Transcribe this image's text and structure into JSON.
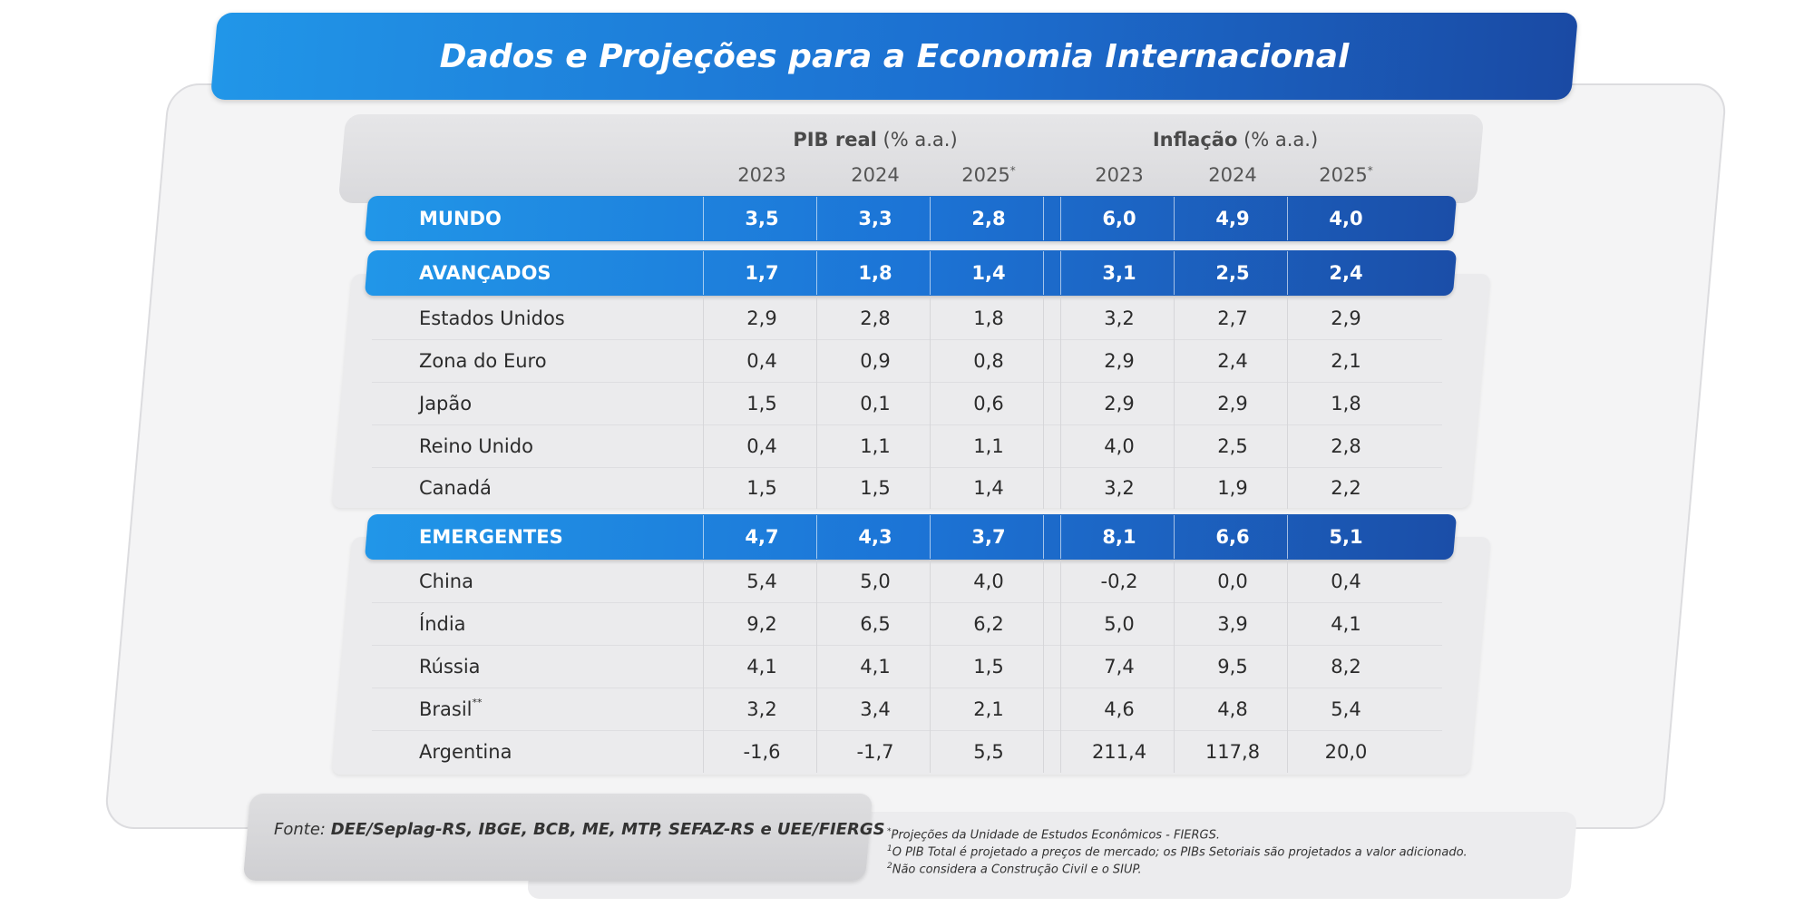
{
  "title": "Dados e Projeções para a Economia Internacional",
  "groups": {
    "pib": {
      "name": "PIB real",
      "unit": "(% a.a.)"
    },
    "inflacao": {
      "name": "Inflação",
      "unit": "(% a.a.)"
    }
  },
  "years": [
    "2023",
    "2024",
    "2025",
    "2023",
    "2024",
    "2025"
  ],
  "year_marks": [
    "",
    "",
    "*",
    "",
    "",
    "*"
  ],
  "rows": [
    {
      "label": "MUNDO",
      "type": "highlight",
      "values": [
        "3,5",
        "3,3",
        "2,8",
        "6,0",
        "4,9",
        "4,0"
      ]
    },
    {
      "label": "AVANÇADOS",
      "type": "highlight",
      "values": [
        "1,7",
        "1,8",
        "1,4",
        "3,1",
        "2,5",
        "2,4"
      ]
    },
    {
      "label": "Estados Unidos",
      "type": "normal",
      "values": [
        "2,9",
        "2,8",
        "1,8",
        "3,2",
        "2,7",
        "2,9"
      ]
    },
    {
      "label": "Zona do Euro",
      "type": "normal",
      "values": [
        "0,4",
        "0,9",
        "0,8",
        "2,9",
        "2,4",
        "2,1"
      ]
    },
    {
      "label": "Japão",
      "type": "normal",
      "values": [
        "1,5",
        "0,1",
        "0,6",
        "2,9",
        "2,9",
        "1,8"
      ]
    },
    {
      "label": "Reino Unido",
      "type": "normal",
      "values": [
        "0,4",
        "1,1",
        "1,1",
        "4,0",
        "2,5",
        "2,8"
      ]
    },
    {
      "label": "Canadá",
      "type": "normal",
      "values": [
        "1,5",
        "1,5",
        "1,4",
        "3,2",
        "1,9",
        "2,2"
      ]
    },
    {
      "label": "EMERGENTES",
      "type": "highlight",
      "values": [
        "4,7",
        "4,3",
        "3,7",
        "8,1",
        "6,6",
        "5,1"
      ]
    },
    {
      "label": "China",
      "type": "normal",
      "values": [
        "5,4",
        "5,0",
        "4,0",
        "-0,2",
        "0,0",
        "0,4"
      ]
    },
    {
      "label": "Índia",
      "type": "normal",
      "values": [
        "9,2",
        "6,5",
        "6,2",
        "5,0",
        "3,9",
        "4,1"
      ]
    },
    {
      "label": "Rússia",
      "type": "normal",
      "values": [
        "4,1",
        "4,1",
        "1,5",
        "7,4",
        "9,5",
        "8,2"
      ]
    },
    {
      "label": "Brasil",
      "mark": "**",
      "type": "normal",
      "values": [
        "3,2",
        "3,4",
        "2,1",
        "4,6",
        "4,8",
        "5,4"
      ]
    },
    {
      "label": "Argentina",
      "type": "normal",
      "values": [
        "-1,6",
        "-1,7",
        "5,5",
        "211,4",
        "117,8",
        "20,0"
      ]
    }
  ],
  "footer": {
    "fonte_prefix": "Fonte: ",
    "fonte_sources": "DEE/Seplag-RS, IBGE, BCB, ME, MTP, SEFAZ-RS e UEE/FIERGS",
    "notes": [
      {
        "mark": "*",
        "text": "Projeções da Unidade de Estudos Econômicos - FIERGS."
      },
      {
        "mark": "1",
        "text": "O PIB Total é projetado a preços de mercado; os PIBs Setoriais são projetados a valor adicionado."
      },
      {
        "mark": "2",
        "text": "Não considera a Construção Civil e o SIUP."
      }
    ]
  },
  "colors": {
    "accent_blue_light": "#2196e8",
    "accent_blue_dark": "#1a4aa4",
    "row_gray": "#ebebed"
  }
}
